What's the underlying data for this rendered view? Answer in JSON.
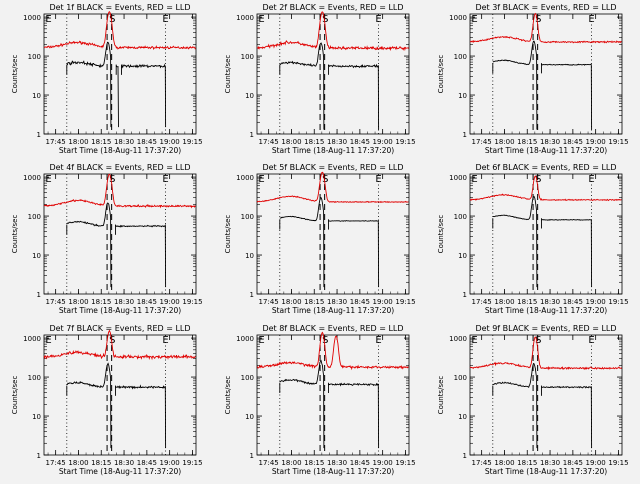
{
  "colors": {
    "background": "#f2f2f2",
    "events": "#000000",
    "lld": "#e00000",
    "axes": "#000000"
  },
  "common": {
    "ylabel": "Counts/sec",
    "xlabel": "Start Time (18-Aug-11 17:37:20)",
    "xticks": [
      "17:45",
      "18:00",
      "18:15",
      "18:30",
      "18:45",
      "19:00",
      "19:15"
    ],
    "yticks": [
      "1",
      "10",
      "100",
      "1000"
    ],
    "markers": [
      "E",
      "S",
      "E"
    ]
  },
  "chart_data": [
    {
      "type": "line",
      "title": "Det 1f BLACK = Events, RED = LLD",
      "yscale": "log",
      "ylim": [
        1,
        1200
      ],
      "x_unit": "minutes after 17:37:20",
      "xlim": [
        0,
        100
      ],
      "lld": {
        "segments": [
          [
            0,
            100
          ]
        ],
        "base": 165,
        "hump": 1.35,
        "flare_peak": 1200,
        "flare_w": 1.8,
        "noise": 0.1
      },
      "events": {
        "segments": [
          [
            15,
            44
          ],
          [
            47.5,
            49
          ],
          [
            51,
            80
          ]
        ],
        "base": 55,
        "hump": 1.25,
        "spike_min": 1.5,
        "noise": 0.12
      },
      "dotted_x": [
        15,
        80
      ],
      "dashed_x": [
        41.5,
        44.5
      ]
    },
    {
      "type": "line",
      "title": "Det 2f BLACK = Events, RED = LLD",
      "yscale": "log",
      "ylim": [
        1,
        1200
      ],
      "x_unit": "minutes after 17:37:20",
      "xlim": [
        0,
        100
      ],
      "lld": {
        "segments": [
          [
            0,
            100
          ]
        ],
        "base": 160,
        "hump": 1.4,
        "flare_peak": 1200,
        "flare_w": 1.8,
        "noise": 0.12
      },
      "events": {
        "segments": [
          [
            15,
            44
          ],
          [
            47,
            80
          ]
        ],
        "base": 55,
        "hump": 1.25,
        "spike_min": 1.3,
        "noise": 0.1
      },
      "dotted_x": [
        15,
        80
      ],
      "dashed_x": [
        41.5,
        44.5
      ]
    },
    {
      "type": "line",
      "title": "Det 3f BLACK = Events, RED = LLD",
      "yscale": "log",
      "ylim": [
        1,
        1200
      ],
      "x_unit": "minutes after 17:37:20",
      "xlim": [
        0,
        100
      ],
      "lld": {
        "segments": [
          [
            0,
            100
          ]
        ],
        "base": 230,
        "hump": 1.35,
        "flare_peak": 1000,
        "flare_w": 1.6,
        "noise": 0.06
      },
      "events": {
        "segments": [
          [
            15,
            44
          ],
          [
            47,
            80
          ]
        ],
        "base": 60,
        "hump": 1.3,
        "spike_min": 1.3,
        "noise": 0.04
      },
      "dotted_x": [
        15,
        80
      ],
      "dashed_x": [
        41.5,
        44.5
      ]
    },
    {
      "type": "line",
      "title": "Det 4f BLACK = Events, RED = LLD",
      "yscale": "log",
      "ylim": [
        1,
        1200
      ],
      "x_unit": "minutes after 17:37:20",
      "xlim": [
        0,
        100
      ],
      "lld": {
        "segments": [
          [
            0,
            100
          ]
        ],
        "base": 180,
        "hump": 1.4,
        "flare_peak": 1000,
        "flare_w": 1.8,
        "noise": 0.08
      },
      "events": {
        "segments": [
          [
            15,
            44
          ],
          [
            47,
            80
          ]
        ],
        "base": 55,
        "hump": 1.3,
        "spike_min": 1.5,
        "noise": 0.06
      },
      "dotted_x": [
        15,
        80
      ],
      "dashed_x": [
        41.5,
        44.5
      ]
    },
    {
      "type": "line",
      "title": "Det 5f BLACK = Events, RED = LLD",
      "yscale": "log",
      "ylim": [
        1,
        1200
      ],
      "x_unit": "minutes after 17:37:20",
      "xlim": [
        0,
        100
      ],
      "lld": {
        "segments": [
          [
            0,
            100
          ]
        ],
        "base": 230,
        "hump": 1.4,
        "flare_peak": 1100,
        "flare_w": 1.8,
        "noise": 0.04
      },
      "events": {
        "segments": [
          [
            15,
            44
          ],
          [
            47,
            80
          ]
        ],
        "base": 75,
        "hump": 1.3,
        "spike_min": 1.5,
        "noise": 0.03
      },
      "dotted_x": [
        15,
        80
      ],
      "dashed_x": [
        41.5,
        44.5
      ]
    },
    {
      "type": "line",
      "title": "Det 6f BLACK = Events, RED = LLD",
      "yscale": "log",
      "ylim": [
        1,
        1200
      ],
      "x_unit": "minutes after 17:37:20",
      "xlim": [
        0,
        100
      ],
      "lld": {
        "segments": [
          [
            0,
            100
          ]
        ],
        "base": 260,
        "hump": 1.35,
        "flare_peak": 800,
        "flare_w": 1.6,
        "noise": 0.05
      },
      "events": {
        "segments": [
          [
            15,
            44
          ],
          [
            47,
            80
          ]
        ],
        "base": 80,
        "hump": 1.3,
        "spike_min": 1.5,
        "noise": 0.03
      },
      "dotted_x": [
        15,
        80
      ],
      "dashed_x": [
        41.5,
        44.5
      ]
    },
    {
      "type": "line",
      "title": "Det 7f BLACK = Events, RED = LLD",
      "yscale": "log",
      "ylim": [
        1,
        1200
      ],
      "x_unit": "minutes after 17:37:20",
      "xlim": [
        0,
        100
      ],
      "lld": {
        "segments": [
          [
            0,
            100
          ]
        ],
        "base": 330,
        "hump": 1.3,
        "flare_peak": 1200,
        "flare_w": 1.6,
        "noise": 0.14
      },
      "events": {
        "segments": [
          [
            15,
            44
          ],
          [
            47,
            80
          ]
        ],
        "base": 55,
        "hump": 1.3,
        "spike_min": 1.5,
        "noise": 0.09
      },
      "dotted_x": [
        15,
        80
      ],
      "dashed_x": [
        41.5,
        44.5
      ]
    },
    {
      "type": "line",
      "title": "Det 8f BLACK = Events, RED = LLD",
      "yscale": "log",
      "ylim": [
        1,
        1200
      ],
      "x_unit": "minutes after 17:37:20",
      "xlim": [
        0,
        100
      ],
      "lld": {
        "segments": [
          [
            0,
            100
          ]
        ],
        "base": 180,
        "hump": 1.3,
        "flare_peak": 1200,
        "flare_w": 1.6,
        "noise": 0.1,
        "second_peak_x": 52,
        "second_peak": 950
      },
      "events": {
        "segments": [
          [
            15,
            44
          ],
          [
            47,
            80
          ]
        ],
        "base": 65,
        "hump": 1.3,
        "spike_min": 1.5,
        "noise": 0.08
      },
      "dotted_x": [
        15,
        80
      ],
      "dashed_x": [
        41.5,
        44.5
      ]
    },
    {
      "type": "line",
      "title": "Det 9f BLACK = Events, RED = LLD",
      "yscale": "log",
      "ylim": [
        1,
        1200
      ],
      "x_unit": "minutes after 17:37:20",
      "xlim": [
        0,
        100
      ],
      "lld": {
        "segments": [
          [
            0,
            100
          ]
        ],
        "base": 170,
        "hump": 1.35,
        "flare_peak": 900,
        "flare_w": 1.6,
        "noise": 0.08
      },
      "events": {
        "segments": [
          [
            15,
            44
          ],
          [
            47,
            80
          ]
        ],
        "base": 55,
        "hump": 1.3,
        "spike_min": 1.5,
        "noise": 0.06
      },
      "dotted_x": [
        15,
        80
      ],
      "dashed_x": [
        41.5,
        44.5
      ]
    }
  ]
}
